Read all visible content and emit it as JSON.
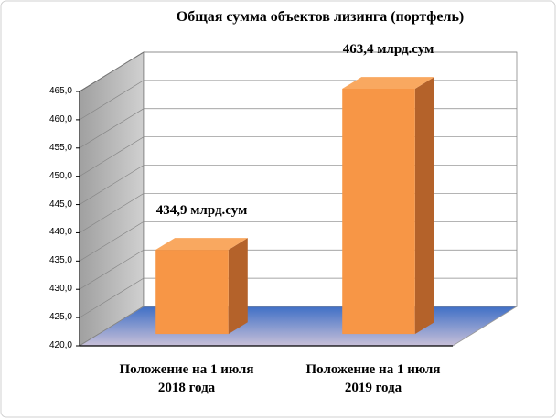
{
  "chart_data": {
    "type": "bar3d",
    "title": "Общая сумма объектов лизинга (портфель)",
    "categories": [
      "Положение на 1 июля 2018 года",
      "Положение на 1 июля 2019 года"
    ],
    "values": [
      434.9,
      463.4
    ],
    "value_labels": [
      "434,9 млрд.сум",
      "463,4 млрд.сум"
    ],
    "color": "#f79646",
    "ylim": [
      420,
      465
    ],
    "yticks": [
      {
        "value": 420,
        "label": "420,0"
      },
      {
        "value": 425,
        "label": "425,0"
      },
      {
        "value": 430,
        "label": "430,0"
      },
      {
        "value": 435,
        "label": "435,0"
      },
      {
        "value": 440,
        "label": "440,0"
      },
      {
        "value": 445,
        "label": "445,0"
      },
      {
        "value": 450,
        "label": "450,0"
      },
      {
        "value": 455,
        "label": "455,0"
      },
      {
        "value": 460,
        "label": "460,0"
      },
      {
        "value": 465,
        "label": "465,0"
      }
    ],
    "grid": true
  }
}
